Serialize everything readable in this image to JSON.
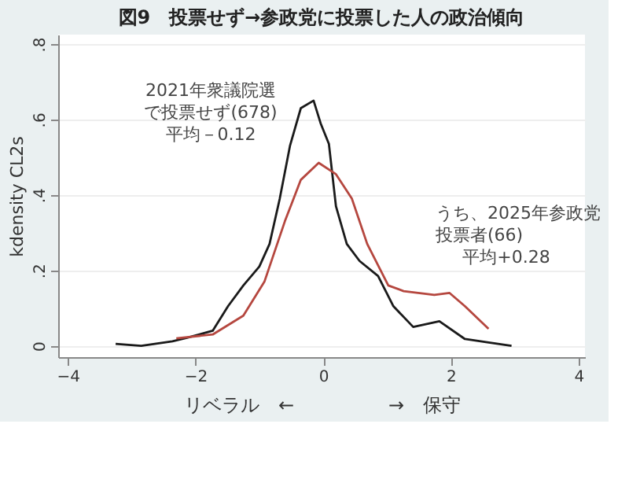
{
  "chart_data": {
    "type": "line",
    "title": "図9　投票せず→参政党に投票した人の政治傾向",
    "xlabel": "リベラル　←　　　　　→　保守",
    "ylabel": "kdensity CL2s",
    "series": [
      {
        "name": "2021年衆議院選で投票せず(678)",
        "color": "#1a1a1a",
        "x": [
          -3.25,
          -2.85,
          -2.36,
          -2.12,
          -1.73,
          -1.49,
          -1.25,
          -1.0,
          -0.84,
          -0.68,
          -0.52,
          -0.35,
          -0.15,
          -0.04,
          0.09,
          0.2,
          0.37,
          0.57,
          0.86,
          1.1,
          1.41,
          1.82,
          2.22,
          2.55,
          2.95
        ],
        "values": [
          0.005,
          0.0,
          0.012,
          0.022,
          0.04,
          0.105,
          0.16,
          0.21,
          0.27,
          0.39,
          0.53,
          0.63,
          0.65,
          0.59,
          0.535,
          0.37,
          0.27,
          0.225,
          0.185,
          0.105,
          0.05,
          0.065,
          0.018,
          0.01,
          0.0
        ]
      },
      {
        "name": "うち、2025年参政党投票者(66)",
        "color": "#b5473f",
        "x": [
          -2.3,
          -1.73,
          -1.25,
          -0.92,
          -0.6,
          -0.35,
          -0.07,
          0.2,
          0.45,
          0.69,
          1.02,
          1.26,
          1.74,
          1.98,
          2.22,
          2.59
        ],
        "values": [
          0.02,
          0.03,
          0.08,
          0.17,
          0.33,
          0.44,
          0.485,
          0.455,
          0.39,
          0.27,
          0.16,
          0.145,
          0.135,
          0.14,
          0.105,
          0.045
        ]
      }
    ],
    "xlim": [
      -4.15,
      4.1
    ],
    "xticks": [
      -4,
      -2,
      0,
      2,
      4
    ],
    "ylim": [
      -0.03,
      0.825
    ],
    "yticks": [
      {
        "value": 0,
        "label": "0"
      },
      {
        "value": 0.2,
        "label": ".2"
      },
      {
        "value": 0.4,
        "label": ".4"
      },
      {
        "value": 0.6,
        "label": ".6"
      },
      {
        "value": 0.8,
        "label": ".8"
      }
    ],
    "annotations": [
      "平均－0.12",
      "平均+0.28"
    ],
    "grid": "y",
    "line_style": "solid"
  }
}
